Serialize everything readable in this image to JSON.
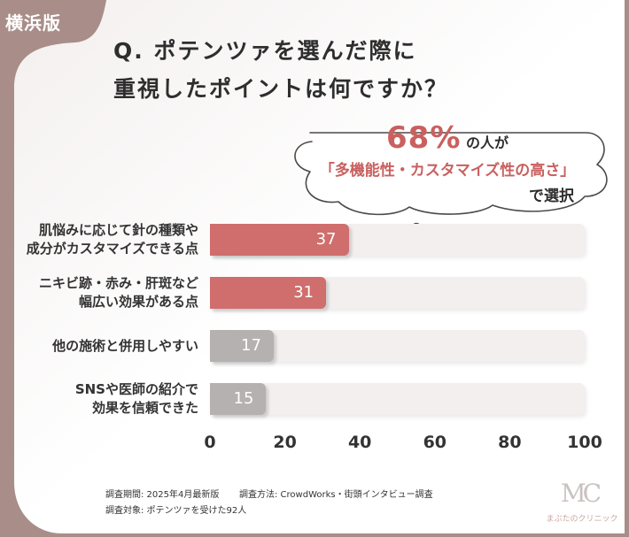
{
  "badge": "横浜版",
  "question": {
    "line1": "Q. ポテンツァを選んだ際に",
    "line2": "重視したポイントは何ですか？"
  },
  "callout": {
    "percent": "68%",
    "after_percent": "の人が",
    "feature": "「多機能性・カスタマイズ性の高さ」",
    "selected": "で選択"
  },
  "chart_data": {
    "type": "bar",
    "orientation": "horizontal",
    "categories": [
      "肌悩みに応じて針の種類や\n成分がカスタマイズできる点",
      "ニキビ跡・赤み・肝斑など\n幅広い効果がある点",
      "他の施術と併用しやすい",
      "SNSや医師の紹介で\n効果を信頼できた"
    ],
    "values": [
      37,
      31,
      17,
      15
    ],
    "bar_colors": [
      "#cf6e6c",
      "#cf6e6c",
      "#b5b1b0",
      "#b5b1b0"
    ],
    "xlim": [
      0,
      100
    ],
    "xticks": [
      "0",
      "20",
      "40",
      "60",
      "80",
      "100"
    ],
    "grid": false,
    "legend": "none"
  },
  "notes": {
    "period": "調査期間: 2025年4月最新版",
    "method": "調査方法: CrowdWorks・街頭インタビュー調査",
    "target": "調査対象: ポテンツァを受けた92人"
  },
  "logo": {
    "mark": "MC",
    "name": "まぶたのクリニック"
  },
  "colors": {
    "frame": "#a88d88",
    "card": "#ffffff",
    "accent": "#c9605f",
    "track": "#f2efee"
  }
}
